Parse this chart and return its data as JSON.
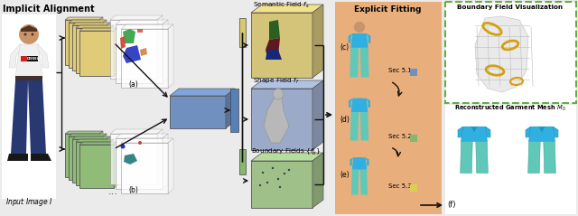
{
  "bg_color": "#ebebeb",
  "implicit_alignment_label": "Implicit Alignment",
  "explicit_fitting_label": "Explicit Fitting",
  "boundary_vis_label": "Boundary Field Visualization",
  "reconstructed_label": "Reconstructed Garment Mesh $M_0$",
  "input_image_label": "Input Image $I$",
  "label_a": "(a)",
  "label_b": "(b)",
  "label_c": "(c)",
  "label_d": "(d)",
  "label_e": "(e)",
  "label_f": "(f)",
  "sec51": "Sec 5.1",
  "sec52": "Sec 5.2",
  "sec53": "Sec 5.3",
  "semantic_field": "Semantic Field $f_s$",
  "shape_field": "Shape Field $f_f$",
  "boundary_fields": "Boundary Fields $\\{f_b^i\\}$",
  "yellow_stack_color": "#E0CC78",
  "green_stack_color": "#90BC78",
  "blue_box_color": "#7090C0",
  "semantic_box_color": "#D4C47A",
  "shape_box_color": "#9AAAC8",
  "boundary_box_color": "#A0C08A",
  "explicit_fitting_bg": "#E8A870",
  "dashed_border_color": "#60B040",
  "arrow_color": "#111111",
  "garment_blue": "#30B0E0",
  "garment_teal": "#60C8B8",
  "sec51_color": "#7090C0",
  "sec52_color": "#80B870",
  "sec53_color": "#D8D050",
  "skin_color": "#C8956A",
  "shirt_color": "#F0F0F0",
  "jeans_color": "#283870",
  "shoe_color": "#181818",
  "person_seg_green": "#306820",
  "person_seg_darkred": "#601820",
  "person_seg_blue": "#182878",
  "bar_blue": "#5880B8",
  "bar_yellow": "#D8C870",
  "bar_green": "#88B870"
}
